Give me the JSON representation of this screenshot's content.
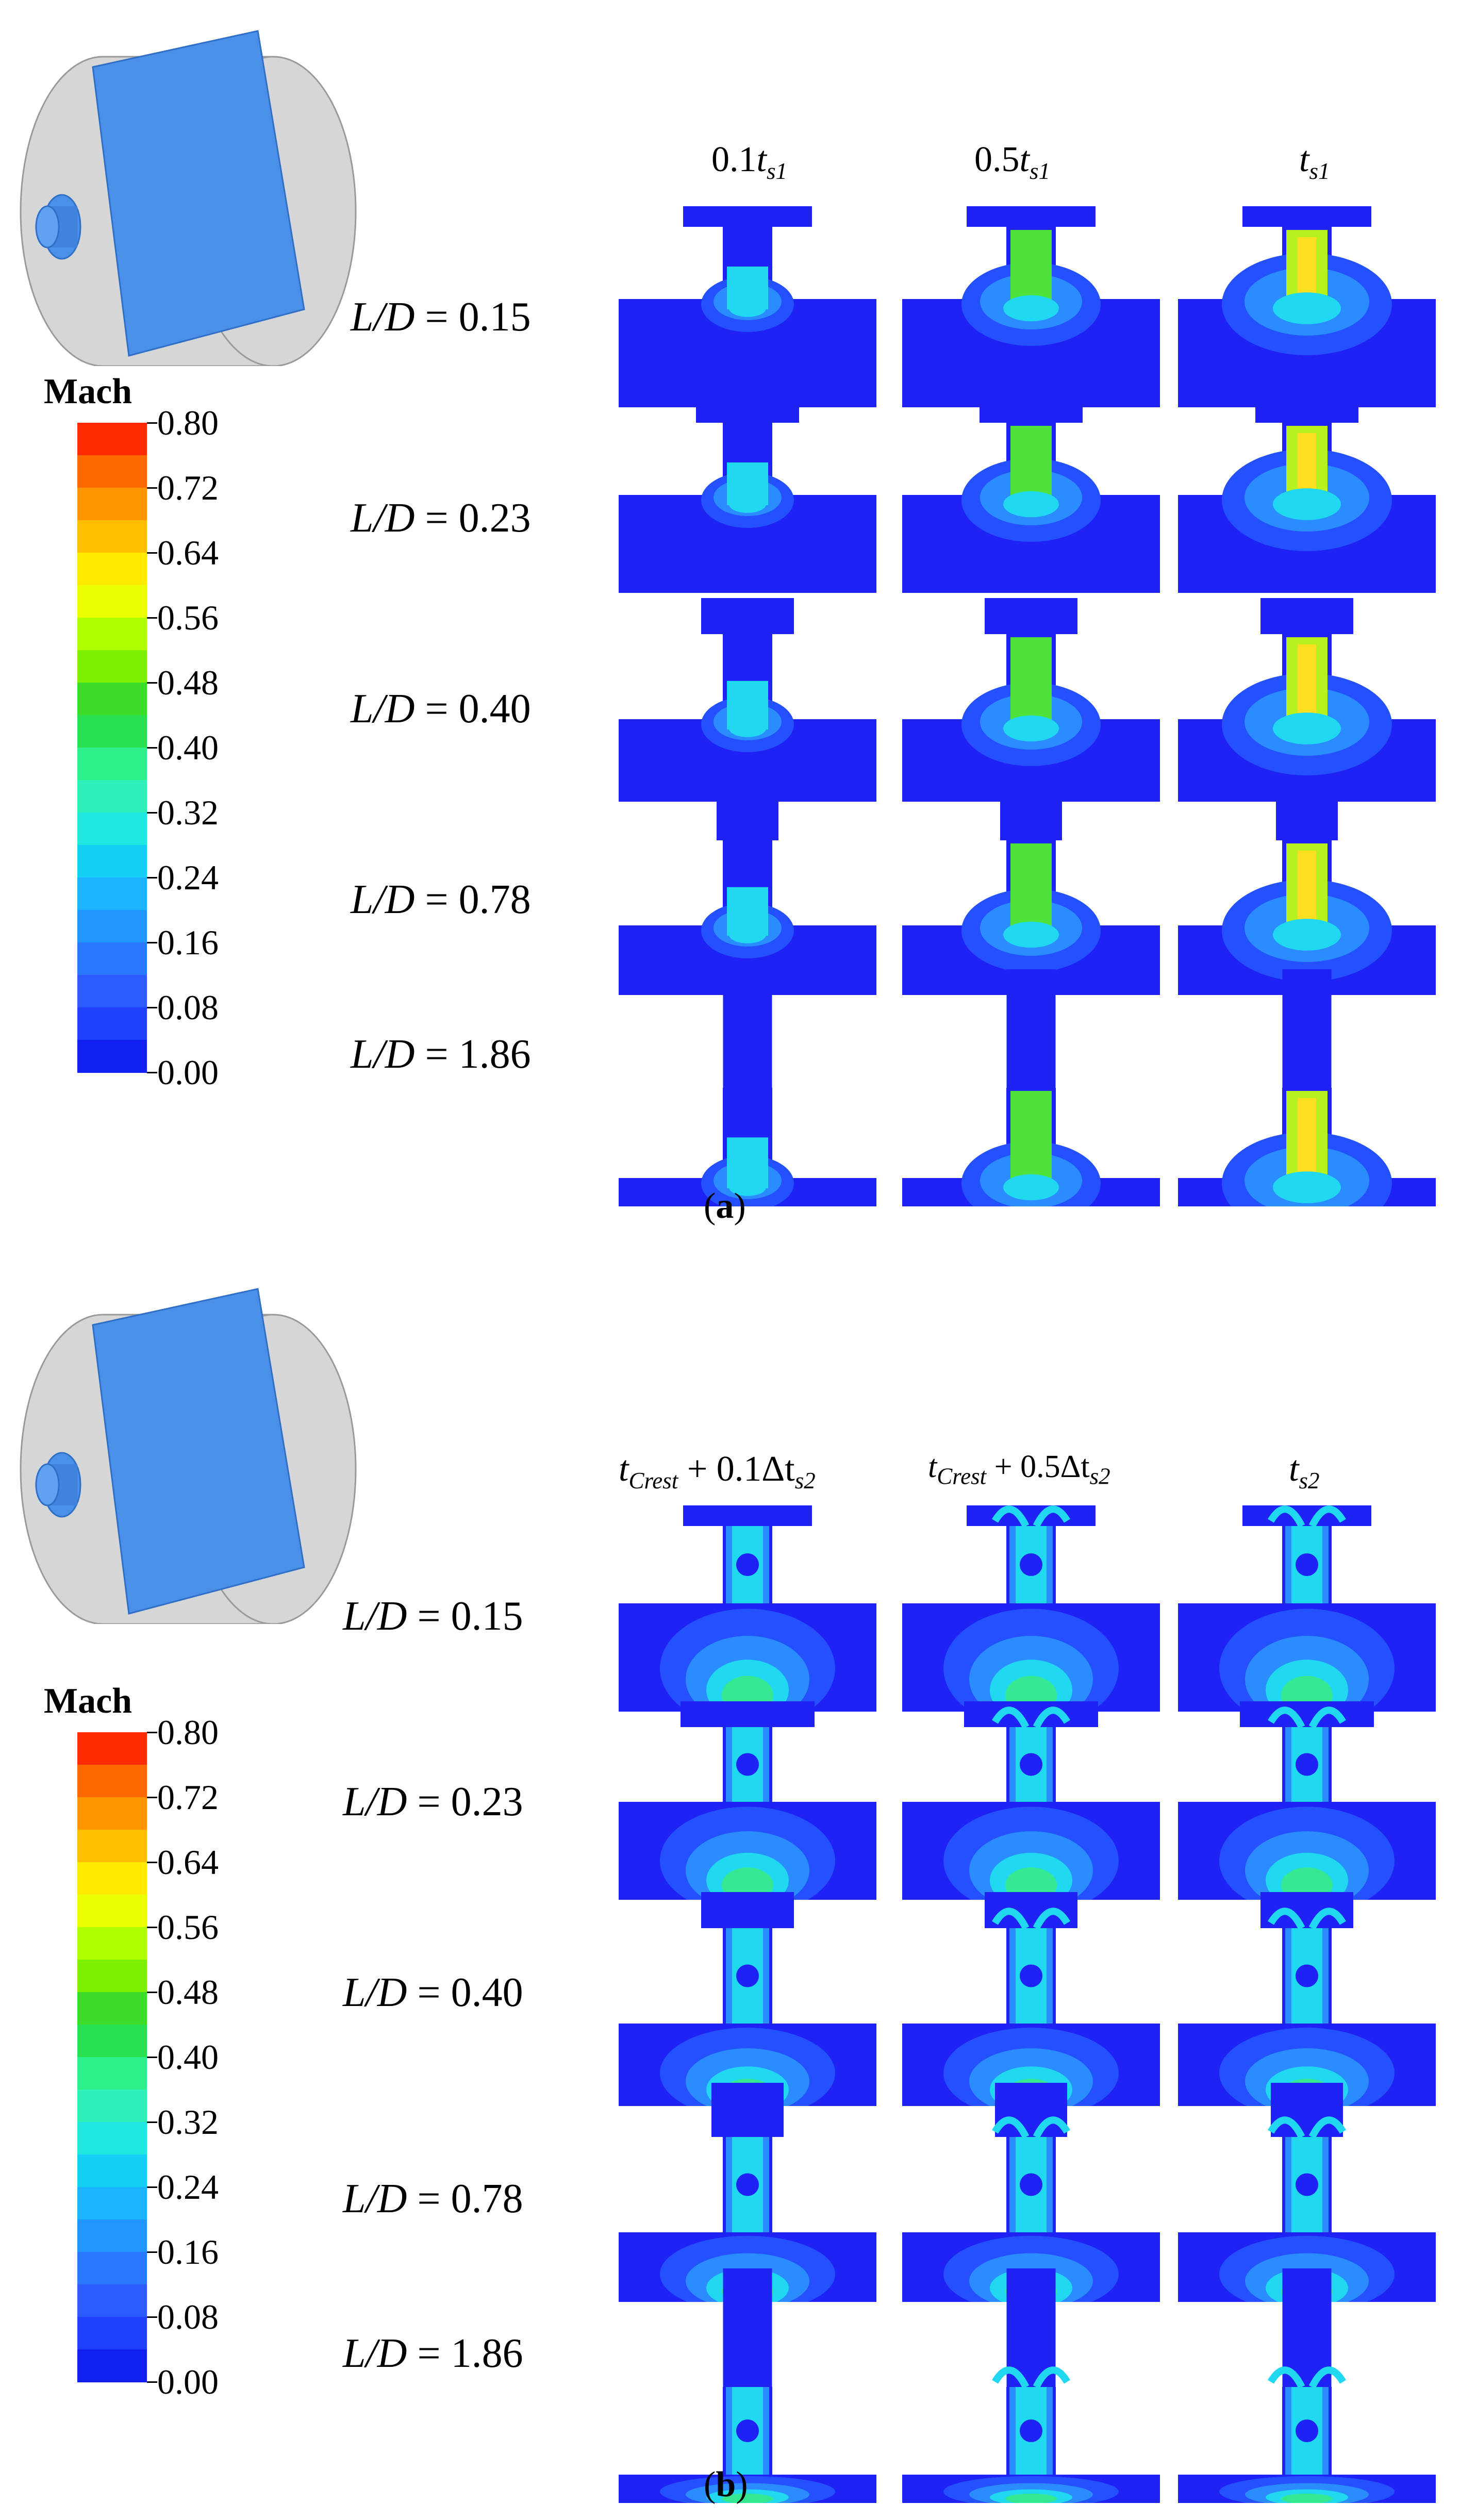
{
  "colorbar": {
    "title": "Mach",
    "labels": [
      "0.80",
      "0.72",
      "0.64",
      "0.56",
      "0.48",
      "0.40",
      "0.32",
      "0.24",
      "0.16",
      "0.08",
      "0.00"
    ],
    "colors": [
      "#ff2a00",
      "#ff6a00",
      "#ff9500",
      "#ffbf00",
      "#ffea00",
      "#eaff00",
      "#b0ff00",
      "#7cf000",
      "#3ddc2a",
      "#29e050",
      "#2ef08a",
      "#2ef0b8",
      "#20e8e0",
      "#14d0f5",
      "#1ab4ff",
      "#2196ff",
      "#2a78ff",
      "#2c5cff",
      "#2040ff",
      "#1020f0"
    ]
  },
  "panel_a": {
    "caption": "a",
    "columns": [
      {
        "coef": "0.1",
        "var": "t",
        "sub": "s1"
      },
      {
        "coef": "0.5",
        "var": "t",
        "sub": "s1"
      },
      {
        "coef": "",
        "var": "t",
        "sub": "s1"
      }
    ],
    "rows": [
      {
        "lhs": "L/D",
        "value": "0.15"
      },
      {
        "lhs": "L/D",
        "value": "0.23"
      },
      {
        "lhs": "L/D",
        "value": "0.40"
      },
      {
        "lhs": "L/D",
        "value": "0.78"
      },
      {
        "lhs": "L/D",
        "value": "1.86"
      }
    ]
  },
  "panel_b": {
    "caption": "b",
    "columns": [
      {
        "prefix": "t",
        "prefix_sub": "Crest",
        "op": "+",
        "coef": "0.1",
        "var": "Δt",
        "sub": "s2"
      },
      {
        "prefix": "t",
        "prefix_sub": "Crest",
        "op": "+",
        "coef": "0.5",
        "var": "Δt",
        "sub": "s2"
      },
      {
        "prefix": "",
        "prefix_sub": "",
        "op": "",
        "coef": "",
        "var": "t",
        "sub": "s2"
      }
    ],
    "rows": [
      {
        "lhs": "L/D",
        "value": "0.15"
      },
      {
        "lhs": "L/D",
        "value": "0.23"
      },
      {
        "lhs": "L/D",
        "value": "0.40"
      },
      {
        "lhs": "L/D",
        "value": "0.78"
      },
      {
        "lhs": "L/D",
        "value": "1.86"
      }
    ]
  },
  "contour_colors": {
    "background": "#1e22f5",
    "low": "#2450ff",
    "mid_low": "#2a8cff",
    "mid": "#20d8f0",
    "mid_high": "#33e890",
    "high": "#4ee23a",
    "very_high": "#b8f020"
  }
}
